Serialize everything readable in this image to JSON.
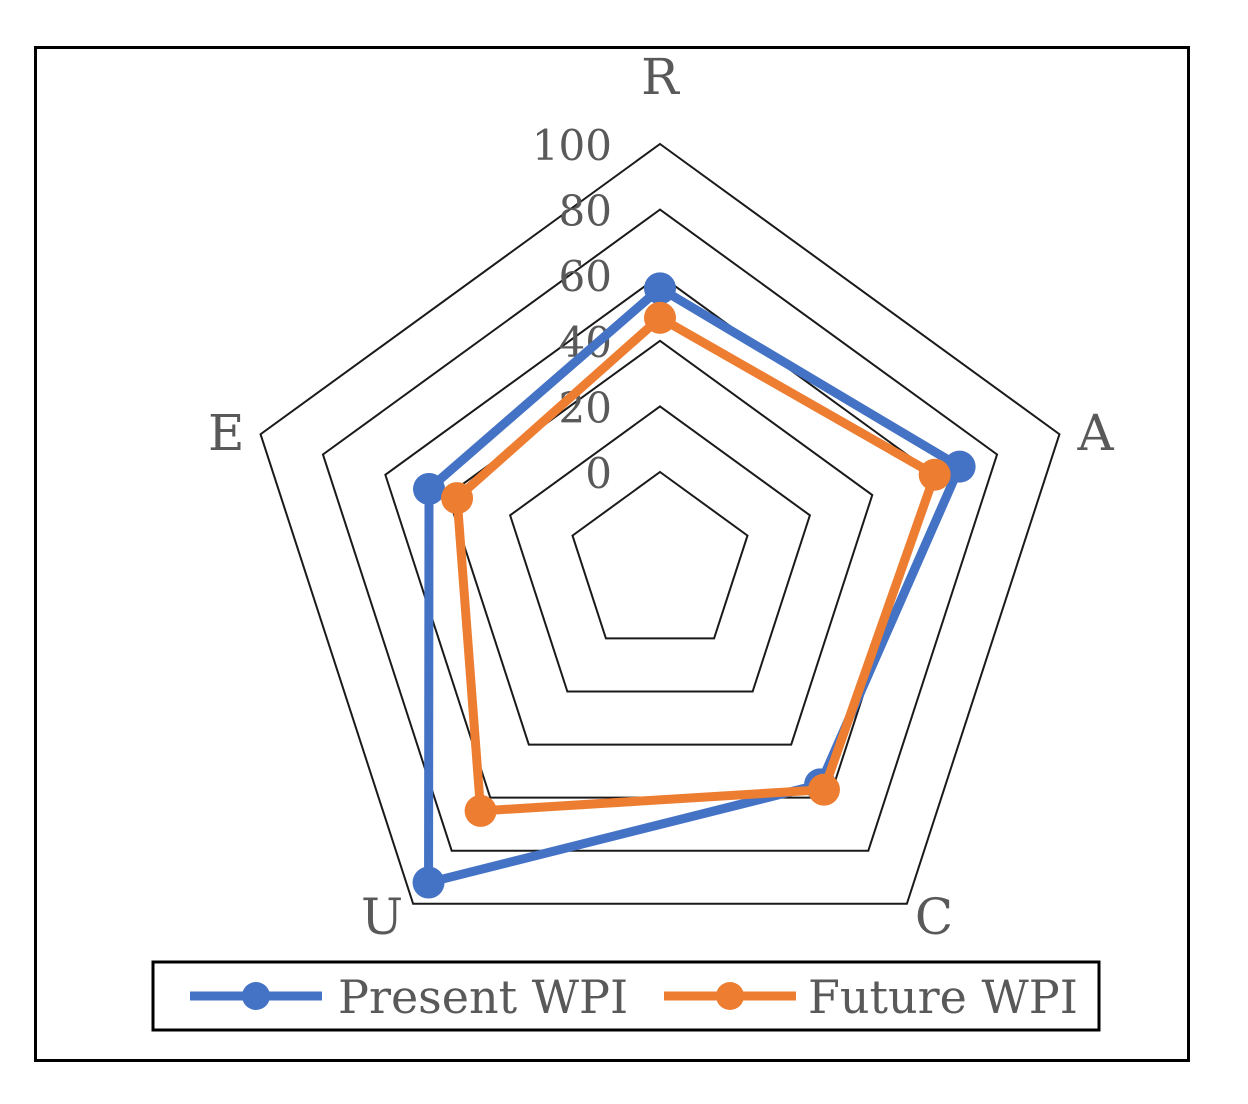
{
  "chart_data": {
    "type": "radar",
    "categories": [
      "R",
      "A",
      "C",
      "U",
      "E"
    ],
    "r_ticks": [
      "0",
      "20",
      "40",
      "60",
      "80",
      "100"
    ],
    "r_range": [
      0,
      100
    ],
    "series": [
      {
        "name": "Present WPI",
        "color": "#4472C4",
        "values": [
          56,
          68,
          55,
          92,
          46
        ]
      },
      {
        "name": "Future WPI",
        "color": "#ED7D31",
        "values": [
          47,
          60,
          57,
          65,
          37
        ]
      }
    ],
    "legend_position": "bottom",
    "grid": true
  }
}
